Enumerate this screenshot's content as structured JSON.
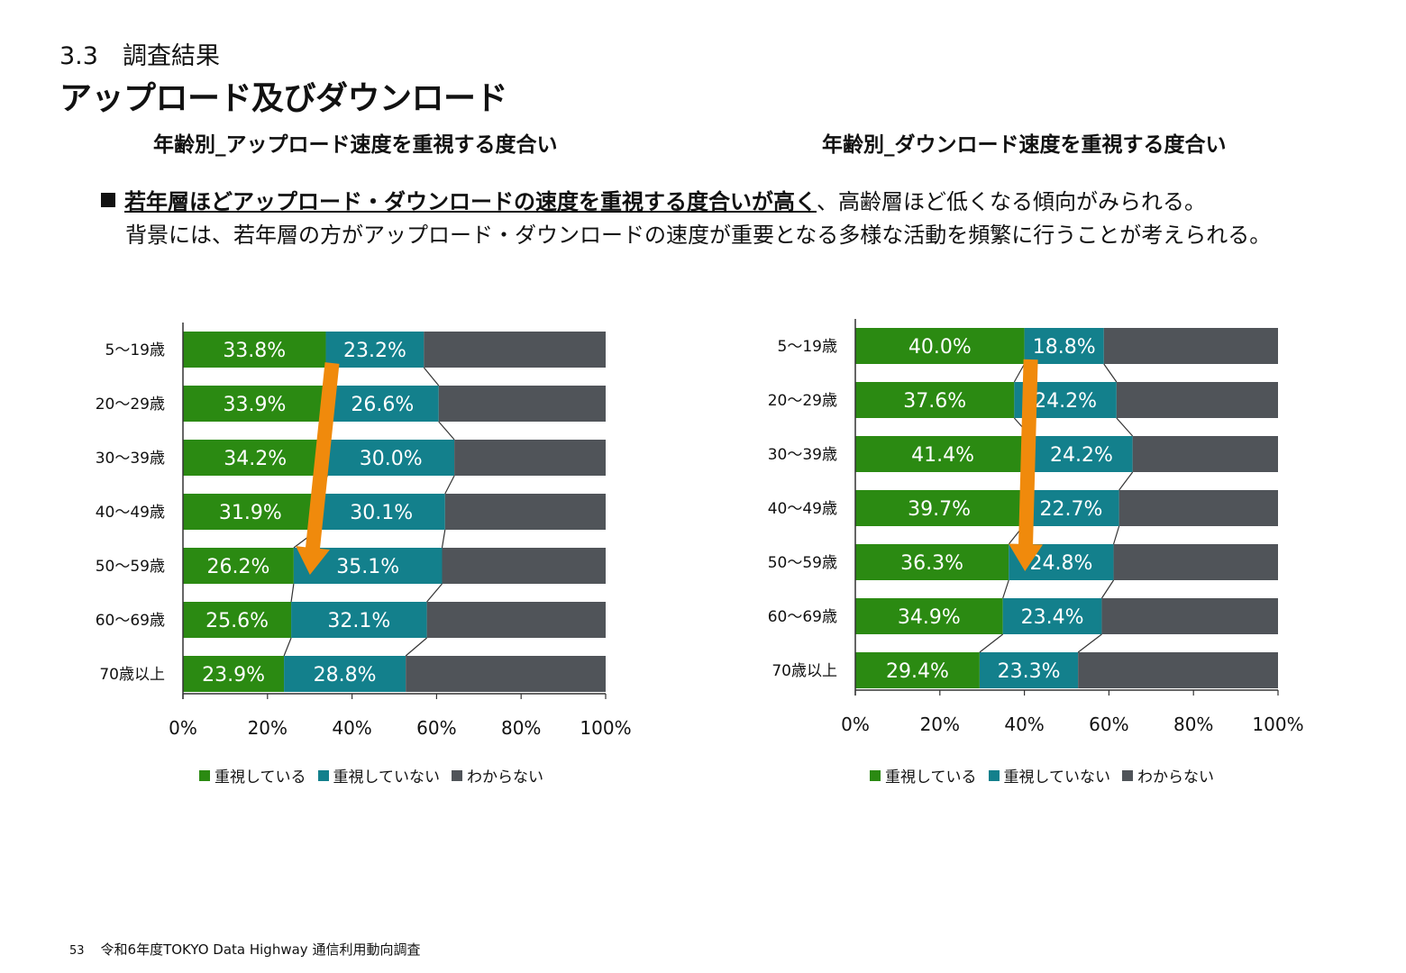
{
  "header": {
    "section_number": "3.3　調査結果",
    "title": "アップロード及びダウンロード"
  },
  "summary": {
    "highlight": "若年層ほどアップロード・ダウンロードの速度を重視する度合いが高く",
    "line1_rest": "、高齢層ほど低くなる傾向がみられる。",
    "line2": "背景には、若年層の方がアップロード・ダウンロードの速度が重要となる多様な活動を頻繁に行うことが考えられる。"
  },
  "legend": {
    "items": [
      "重視している",
      "重視していない",
      "わからない"
    ],
    "colors": [
      "#2b8a12",
      "#13808c",
      "#505459"
    ]
  },
  "footer": {
    "page": "53",
    "text": "令和6年度TOKYO Data Highway 通信利用動向調査"
  },
  "chart_data": [
    {
      "type": "bar",
      "orientation": "horizontal",
      "stacked": "100%",
      "title": "年齢別_アップロード速度を重視する度合い",
      "categories": [
        "5～19歳",
        "20～29歳",
        "30～39歳",
        "40～49歳",
        "50～59歳",
        "60～69歳",
        "70歳以上"
      ],
      "series": [
        {
          "name": "重視している",
          "values": [
            33.8,
            33.9,
            34.2,
            31.9,
            26.2,
            25.6,
            23.9
          ],
          "color": "#2b8a12"
        },
        {
          "name": "重視していない",
          "values": [
            23.2,
            26.6,
            30.0,
            30.1,
            35.1,
            32.1,
            28.8
          ],
          "color": "#13808c"
        },
        {
          "name": "わからない",
          "values": [
            43.0,
            39.5,
            35.8,
            38.0,
            38.7,
            42.3,
            47.3
          ],
          "color": "#505459"
        }
      ],
      "data_labels": [
        [
          "33.8%",
          "33.9%",
          "34.2%",
          "31.9%",
          "26.2%",
          "25.6%",
          "23.9%"
        ],
        [
          "23.2%",
          "26.6%",
          "30.0%",
          "30.1%",
          "35.1%",
          "32.1%",
          "28.8%"
        ]
      ],
      "xlim": [
        0,
        100
      ],
      "xticks": [
        "0%",
        "20%",
        "40%",
        "60%",
        "80%",
        "100%"
      ],
      "arrow": {
        "from_category": "5～19歳",
        "to_category": "50～59歳",
        "color": "#f08a0c"
      }
    },
    {
      "type": "bar",
      "orientation": "horizontal",
      "stacked": "100%",
      "title": "年齢別_ダウンロード速度を重視する度合い",
      "categories": [
        "5～19歳",
        "20～29歳",
        "30～39歳",
        "40～49歳",
        "50～59歳",
        "60～69歳",
        "70歳以上"
      ],
      "series": [
        {
          "name": "重視している",
          "values": [
            40.0,
            37.6,
            41.4,
            39.7,
            36.3,
            34.9,
            29.4
          ],
          "color": "#2b8a12"
        },
        {
          "name": "重視していない",
          "values": [
            18.8,
            24.2,
            24.2,
            22.7,
            24.8,
            23.4,
            23.3
          ],
          "color": "#13808c"
        },
        {
          "name": "わからない",
          "values": [
            41.2,
            38.2,
            34.4,
            37.6,
            38.9,
            41.7,
            47.3
          ],
          "color": "#505459"
        }
      ],
      "data_labels": [
        [
          "40.0%",
          "37.6%",
          "41.4%",
          "39.7%",
          "36.3%",
          "34.9%",
          "29.4%"
        ],
        [
          "18.8%",
          "24.2%",
          "24.2%",
          "22.7%",
          "24.8%",
          "23.4%",
          "23.3%"
        ]
      ],
      "xlim": [
        0,
        100
      ],
      "xticks": [
        "0%",
        "20%",
        "40%",
        "60%",
        "80%",
        "100%"
      ],
      "arrow": {
        "from_category": "5～19歳",
        "to_category": "50～59歳",
        "color": "#f08a0c"
      }
    }
  ]
}
